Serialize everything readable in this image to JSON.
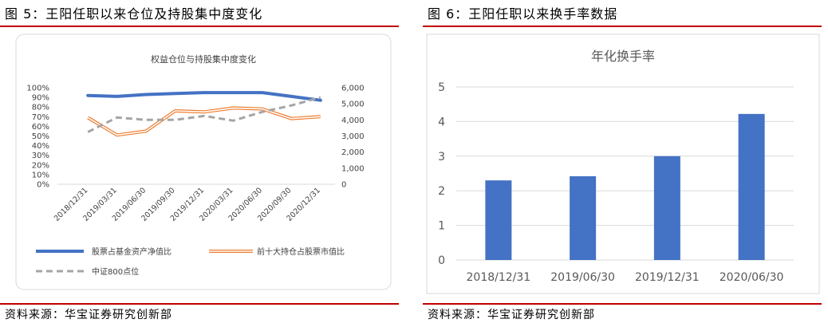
{
  "left": {
    "figure_title": "图 5：王阳任职以来仓位及持股集中度变化",
    "source": "资料来源：华宝证券研究创新部"
  },
  "right": {
    "figure_title": "图 6：王阳任职以来换手率数据",
    "source": "资料来源：华宝证券研究创新部"
  },
  "chart_data": [
    {
      "type": "line",
      "title": "权益仓位与持股集中度变化",
      "categories": [
        "2018/12/31",
        "2019/03/31",
        "2019/06/30",
        "2019/09/30",
        "2019/12/31",
        "2020/03/31",
        "2020/06/30",
        "2020/09/30",
        "2020/12/31"
      ],
      "y_left": {
        "ticks": [
          "100%",
          "90%",
          "80%",
          "70%",
          "60%",
          "50%",
          "40%",
          "30%",
          "20%",
          "10%",
          "0%"
        ],
        "ylim": [
          0,
          1
        ]
      },
      "y_right": {
        "ticks": [
          "6,000",
          "5,000",
          "4,000",
          "3,000",
          "2,000",
          "1,000",
          "0"
        ],
        "ylim": [
          0,
          6000
        ]
      },
      "grid": false,
      "legend_position": "bottom",
      "series": [
        {
          "name": "股票占基金资产净值比",
          "axis": "left",
          "color": "#4472c4",
          "style": "solid-thick",
          "values": [
            0.92,
            0.91,
            0.93,
            0.94,
            0.95,
            0.95,
            0.95,
            0.91,
            0.87
          ]
        },
        {
          "name": "前十大持仓占股票市值比",
          "axis": "left",
          "color": "#ed7d31",
          "style": "double",
          "values": [
            0.69,
            0.51,
            0.55,
            0.76,
            0.75,
            0.79,
            0.78,
            0.68,
            0.7
          ]
        },
        {
          "name": "中证800点位",
          "axis": "right",
          "color": "#a5a5a5",
          "style": "dashed",
          "values": [
            3250,
            4150,
            4000,
            4000,
            4250,
            3950,
            4500,
            4900,
            5400
          ]
        }
      ]
    },
    {
      "type": "bar",
      "title": "年化换手率",
      "categories": [
        "2018/12/31",
        "2019/06/30",
        "2019/12/31",
        "2020/06/30"
      ],
      "values": [
        2.3,
        2.42,
        3.0,
        4.22
      ],
      "y_ticks": [
        "5",
        "4",
        "3",
        "2",
        "1",
        "0"
      ],
      "ylim": [
        0,
        5
      ],
      "grid": true,
      "color": "#4472c4"
    }
  ]
}
